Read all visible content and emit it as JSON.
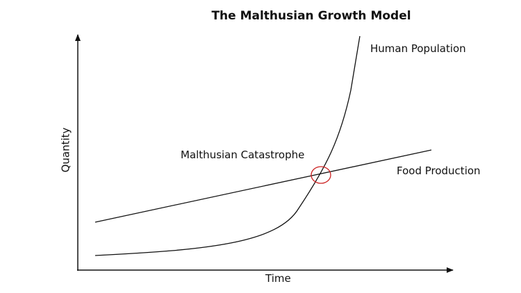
{
  "title": "The Malthusian Growth Model",
  "axes": {
    "x_label": "Time",
    "y_label": "Quantity"
  },
  "curves": {
    "human_population": {
      "label": "Human Population",
      "shape": "exponential"
    },
    "food_production": {
      "label": "Food Production",
      "shape": "linear"
    }
  },
  "annotation": {
    "label": "Malthusian Catastrophe",
    "marker_color": "#cc2222"
  },
  "colors": {
    "lines": "#111111",
    "text": "#111111"
  }
}
